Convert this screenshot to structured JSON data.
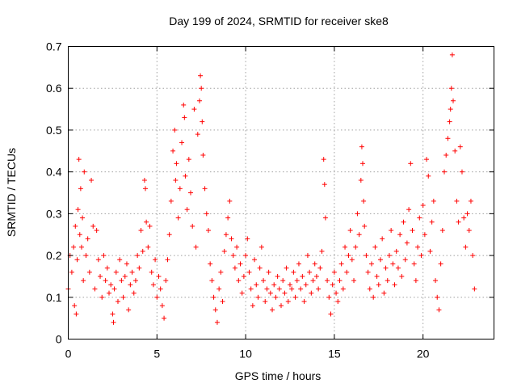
{
  "chart_data": {
    "type": "scatter",
    "title": "Day 199 of 2024, SRMTID for receiver ske8",
    "xlabel": "GPS time / hours",
    "ylabel": "SRMTID / TECUs",
    "xlim": [
      0,
      24
    ],
    "ylim": [
      0,
      0.7
    ],
    "x_ticks": [
      0,
      5,
      10,
      15,
      20
    ],
    "x_tick_labels": [
      "0",
      "5",
      "10",
      "15",
      "20"
    ],
    "y_ticks": [
      0,
      0.1,
      0.2,
      0.3,
      0.4,
      0.5,
      0.6,
      0.7
    ],
    "y_tick_labels": [
      "0",
      "0.1",
      "0.2",
      "0.3",
      "0.4",
      "0.5",
      "0.6",
      "0.7"
    ],
    "grid": true,
    "marker": "+",
    "color": "#ff0000",
    "series": [
      {
        "name": "SRMTID",
        "points": [
          [
            0.0,
            0.12
          ],
          [
            0.1,
            0.2
          ],
          [
            0.2,
            0.16
          ],
          [
            0.3,
            0.22
          ],
          [
            0.35,
            0.08
          ],
          [
            0.4,
            0.27
          ],
          [
            0.45,
            0.06
          ],
          [
            0.5,
            0.19
          ],
          [
            0.55,
            0.31
          ],
          [
            0.6,
            0.43
          ],
          [
            0.65,
            0.25
          ],
          [
            0.7,
            0.36
          ],
          [
            0.75,
            0.22
          ],
          [
            0.8,
            0.29
          ],
          [
            0.85,
            0.14
          ],
          [
            0.9,
            0.4
          ],
          [
            1.0,
            0.2
          ],
          [
            1.1,
            0.24
          ],
          [
            1.2,
            0.16
          ],
          [
            1.3,
            0.38
          ],
          [
            1.4,
            0.27
          ],
          [
            1.5,
            0.12
          ],
          [
            1.6,
            0.26
          ],
          [
            1.7,
            0.19
          ],
          [
            1.8,
            0.15
          ],
          [
            1.9,
            0.1
          ],
          [
            2.0,
            0.2
          ],
          [
            2.1,
            0.14
          ],
          [
            2.2,
            0.17
          ],
          [
            2.3,
            0.11
          ],
          [
            2.4,
            0.13
          ],
          [
            2.5,
            0.06
          ],
          [
            2.55,
            0.04
          ],
          [
            2.6,
            0.12
          ],
          [
            2.7,
            0.16
          ],
          [
            2.8,
            0.09
          ],
          [
            2.9,
            0.19
          ],
          [
            3.0,
            0.14
          ],
          [
            3.1,
            0.1
          ],
          [
            3.2,
            0.15
          ],
          [
            3.3,
            0.18
          ],
          [
            3.4,
            0.07
          ],
          [
            3.5,
            0.13
          ],
          [
            3.6,
            0.16
          ],
          [
            3.7,
            0.11
          ],
          [
            3.8,
            0.14
          ],
          [
            3.9,
            0.2
          ],
          [
            4.0,
            0.17
          ],
          [
            4.1,
            0.26
          ],
          [
            4.2,
            0.21
          ],
          [
            4.3,
            0.38
          ],
          [
            4.35,
            0.36
          ],
          [
            4.4,
            0.28
          ],
          [
            4.5,
            0.22
          ],
          [
            4.6,
            0.27
          ],
          [
            4.7,
            0.16
          ],
          [
            4.8,
            0.13
          ],
          [
            4.9,
            0.19
          ],
          [
            5.0,
            0.1
          ],
          [
            5.1,
            0.15
          ],
          [
            5.2,
            0.12
          ],
          [
            5.3,
            0.08
          ],
          [
            5.4,
            0.05
          ],
          [
            5.5,
            0.14
          ],
          [
            5.6,
            0.19
          ],
          [
            5.7,
            0.25
          ],
          [
            5.8,
            0.33
          ],
          [
            5.9,
            0.45
          ],
          [
            6.0,
            0.5
          ],
          [
            6.05,
            0.38
          ],
          [
            6.1,
            0.42
          ],
          [
            6.2,
            0.29
          ],
          [
            6.3,
            0.36
          ],
          [
            6.4,
            0.47
          ],
          [
            6.5,
            0.56
          ],
          [
            6.55,
            0.53
          ],
          [
            6.6,
            0.39
          ],
          [
            6.7,
            0.31
          ],
          [
            6.8,
            0.43
          ],
          [
            6.9,
            0.35
          ],
          [
            7.0,
            0.27
          ],
          [
            7.1,
            0.55
          ],
          [
            7.2,
            0.22
          ],
          [
            7.3,
            0.49
          ],
          [
            7.4,
            0.57
          ],
          [
            7.45,
            0.63
          ],
          [
            7.5,
            0.6
          ],
          [
            7.55,
            0.52
          ],
          [
            7.6,
            0.44
          ],
          [
            7.7,
            0.36
          ],
          [
            7.8,
            0.3
          ],
          [
            7.9,
            0.26
          ],
          [
            8.0,
            0.18
          ],
          [
            8.1,
            0.14
          ],
          [
            8.2,
            0.1
          ],
          [
            8.3,
            0.07
          ],
          [
            8.4,
            0.04
          ],
          [
            8.5,
            0.12
          ],
          [
            8.6,
            0.16
          ],
          [
            8.7,
            0.09
          ],
          [
            8.8,
            0.21
          ],
          [
            8.9,
            0.25
          ],
          [
            9.0,
            0.29
          ],
          [
            9.1,
            0.33
          ],
          [
            9.2,
            0.24
          ],
          [
            9.3,
            0.2
          ],
          [
            9.4,
            0.17
          ],
          [
            9.5,
            0.22
          ],
          [
            9.6,
            0.14
          ],
          [
            9.7,
            0.18
          ],
          [
            9.8,
            0.11
          ],
          [
            9.9,
            0.15
          ],
          [
            10.0,
            0.2
          ],
          [
            10.1,
            0.24
          ],
          [
            10.2,
            0.16
          ],
          [
            10.3,
            0.12
          ],
          [
            10.4,
            0.08
          ],
          [
            10.5,
            0.19
          ],
          [
            10.6,
            0.13
          ],
          [
            10.7,
            0.1
          ],
          [
            10.8,
            0.17
          ],
          [
            10.9,
            0.22
          ],
          [
            11.0,
            0.14
          ],
          [
            11.1,
            0.09
          ],
          [
            11.2,
            0.12
          ],
          [
            11.3,
            0.16
          ],
          [
            11.4,
            0.11
          ],
          [
            11.5,
            0.07
          ],
          [
            11.6,
            0.13
          ],
          [
            11.7,
            0.1
          ],
          [
            11.8,
            0.15
          ],
          [
            11.9,
            0.12
          ],
          [
            12.0,
            0.08
          ],
          [
            12.1,
            0.14
          ],
          [
            12.2,
            0.11
          ],
          [
            12.3,
            0.17
          ],
          [
            12.4,
            0.09
          ],
          [
            12.5,
            0.13
          ],
          [
            12.6,
            0.12
          ],
          [
            12.7,
            0.16
          ],
          [
            12.8,
            0.1
          ],
          [
            12.9,
            0.14
          ],
          [
            13.0,
            0.18
          ],
          [
            13.1,
            0.12
          ],
          [
            13.2,
            0.15
          ],
          [
            13.3,
            0.09
          ],
          [
            13.4,
            0.13
          ],
          [
            13.5,
            0.2
          ],
          [
            13.6,
            0.16
          ],
          [
            13.7,
            0.11
          ],
          [
            13.8,
            0.14
          ],
          [
            13.9,
            0.18
          ],
          [
            14.0,
            0.15
          ],
          [
            14.1,
            0.12
          ],
          [
            14.2,
            0.17
          ],
          [
            14.3,
            0.21
          ],
          [
            14.4,
            0.43
          ],
          [
            14.45,
            0.37
          ],
          [
            14.5,
            0.29
          ],
          [
            14.6,
            0.14
          ],
          [
            14.7,
            0.1
          ],
          [
            14.8,
            0.06
          ],
          [
            14.9,
            0.13
          ],
          [
            15.0,
            0.16
          ],
          [
            15.1,
            0.11
          ],
          [
            15.2,
            0.09
          ],
          [
            15.3,
            0.14
          ],
          [
            15.4,
            0.18
          ],
          [
            15.5,
            0.12
          ],
          [
            15.6,
            0.22
          ],
          [
            15.7,
            0.16
          ],
          [
            15.8,
            0.2
          ],
          [
            15.9,
            0.26
          ],
          [
            16.0,
            0.19
          ],
          [
            16.1,
            0.14
          ],
          [
            16.2,
            0.22
          ],
          [
            16.3,
            0.3
          ],
          [
            16.4,
            0.25
          ],
          [
            16.5,
            0.38
          ],
          [
            16.55,
            0.46
          ],
          [
            16.6,
            0.42
          ],
          [
            16.65,
            0.33
          ],
          [
            16.7,
            0.27
          ],
          [
            16.8,
            0.2
          ],
          [
            16.9,
            0.16
          ],
          [
            17.0,
            0.12
          ],
          [
            17.1,
            0.18
          ],
          [
            17.2,
            0.1
          ],
          [
            17.3,
            0.22
          ],
          [
            17.4,
            0.15
          ],
          [
            17.5,
            0.13
          ],
          [
            17.6,
            0.19
          ],
          [
            17.7,
            0.24
          ],
          [
            17.8,
            0.11
          ],
          [
            17.9,
            0.17
          ],
          [
            18.0,
            0.14
          ],
          [
            18.1,
            0.2
          ],
          [
            18.2,
            0.26
          ],
          [
            18.3,
            0.18
          ],
          [
            18.4,
            0.13
          ],
          [
            18.5,
            0.21
          ],
          [
            18.6,
            0.17
          ],
          [
            18.7,
            0.25
          ],
          [
            18.8,
            0.15
          ],
          [
            18.9,
            0.28
          ],
          [
            19.0,
            0.19
          ],
          [
            19.1,
            0.23
          ],
          [
            19.2,
            0.31
          ],
          [
            19.3,
            0.42
          ],
          [
            19.4,
            0.26
          ],
          [
            19.5,
            0.18
          ],
          [
            19.6,
            0.14
          ],
          [
            19.7,
            0.22
          ],
          [
            19.8,
            0.29
          ],
          [
            19.9,
            0.2
          ],
          [
            20.0,
            0.32
          ],
          [
            20.1,
            0.25
          ],
          [
            20.2,
            0.43
          ],
          [
            20.3,
            0.39
          ],
          [
            20.4,
            0.21
          ],
          [
            20.5,
            0.28
          ],
          [
            20.6,
            0.33
          ],
          [
            20.7,
            0.14
          ],
          [
            20.8,
            0.1
          ],
          [
            20.9,
            0.07
          ],
          [
            21.0,
            0.18
          ],
          [
            21.1,
            0.26
          ],
          [
            21.2,
            0.4
          ],
          [
            21.3,
            0.44
          ],
          [
            21.4,
            0.48
          ],
          [
            21.5,
            0.52
          ],
          [
            21.55,
            0.55
          ],
          [
            21.6,
            0.6
          ],
          [
            21.65,
            0.68
          ],
          [
            21.7,
            0.57
          ],
          [
            21.8,
            0.45
          ],
          [
            21.9,
            0.33
          ],
          [
            22.0,
            0.28
          ],
          [
            22.1,
            0.46
          ],
          [
            22.2,
            0.4
          ],
          [
            22.3,
            0.29
          ],
          [
            22.4,
            0.22
          ],
          [
            22.5,
            0.3
          ],
          [
            22.6,
            0.26
          ],
          [
            22.7,
            0.33
          ],
          [
            22.8,
            0.2
          ],
          [
            22.9,
            0.12
          ]
        ]
      }
    ]
  }
}
